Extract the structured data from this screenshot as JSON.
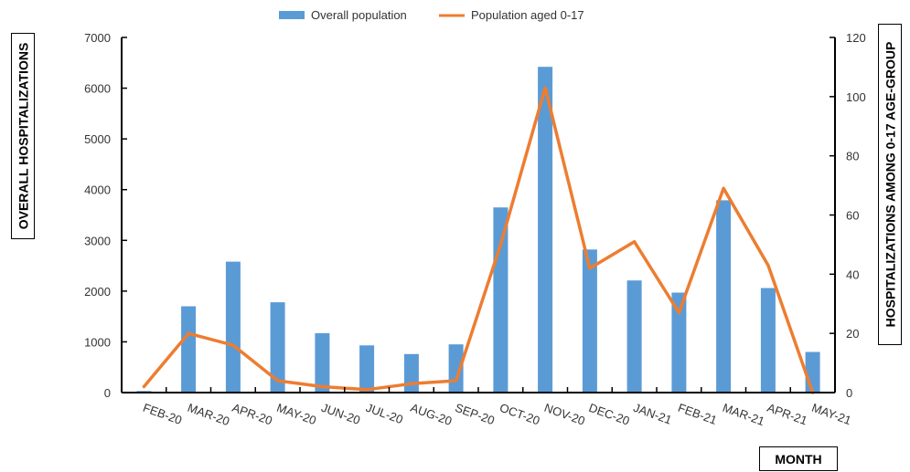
{
  "chart_data": {
    "type": "bar",
    "categories": [
      "FEB-20",
      "MAR-20",
      "APR-20",
      "MAY-20",
      "JUN-20",
      "JUL-20",
      "AUG-20",
      "SEP-20",
      "OCT-20",
      "NOV-20",
      "DEC-20",
      "JAN-21",
      "FEB-21",
      "MAR-21",
      "APR-21",
      "MAY-21"
    ],
    "series": [
      {
        "name": "Overall population",
        "type": "bar",
        "axis": "left",
        "color": "#5b9bd5",
        "values": [
          30,
          1700,
          2580,
          1780,
          1170,
          930,
          760,
          950,
          3650,
          6420,
          2820,
          2210,
          1970,
          3790,
          2060,
          800
        ]
      },
      {
        "name": "Population aged 0-17",
        "type": "line",
        "axis": "right",
        "color": "#ed7d31",
        "values": [
          2,
          20,
          16,
          4,
          2,
          1,
          3,
          4,
          50,
          103,
          42,
          51,
          27,
          69,
          43,
          0
        ]
      }
    ],
    "ylabel": "OVERALL HOSPITALIZATIONS",
    "y2label": "HOSPITALIZATIONS AMONG 0-17 AGE-GROUP",
    "xlabel": "MONTH",
    "ylim": [
      0,
      7000
    ],
    "y2lim": [
      0,
      120
    ],
    "yticks": [
      "0",
      "1000",
      "2000",
      "3000",
      "4000",
      "5000",
      "6000",
      "7000"
    ],
    "y2ticks": [
      "0",
      "20",
      "40",
      "60",
      "80",
      "100",
      "120"
    ],
    "legend_position": "top-center",
    "grid": false
  }
}
